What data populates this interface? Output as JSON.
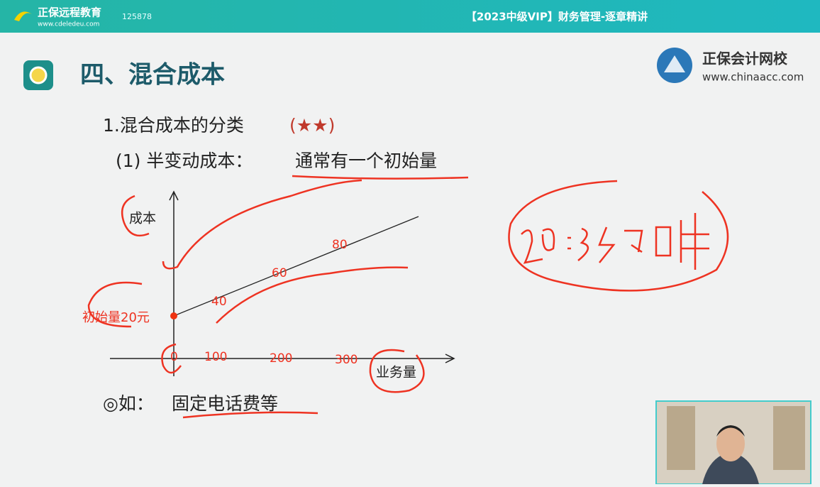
{
  "header": {
    "brand": "正保远程教育",
    "url": "www.cdeledeu.com",
    "id": "125878",
    "title": "【2023中级VIP】财务管理-逐章精讲"
  },
  "slide": {
    "heading": "四、混合成本",
    "school": "正保会计网校",
    "school_url": "www.chinaacc.com",
    "point": "1.混合成本的分类",
    "stars": "(★★)",
    "sub": "(1) 半变动成本：",
    "sub_note": "通常有一个初始量",
    "graph": {
      "y_label": "成本",
      "x_label": "业务量",
      "initial": "初始量20元",
      "origin": "0",
      "x_marks": [
        "100",
        "200",
        "300"
      ],
      "line_marks": [
        "40",
        "60",
        "80"
      ]
    },
    "example": "◎如：",
    "example_note": "固定电话费等"
  }
}
